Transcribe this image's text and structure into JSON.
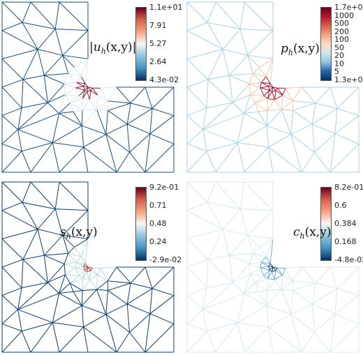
{
  "panels": [
    {
      "id": "u",
      "label": {
        "sym": "|u",
        "sub": "h",
        "args": "(x,y)",
        "close": "|"
      },
      "colorbar": {
        "colors": [
          "#67001f",
          "#d6604d",
          "#f4a582",
          "#f7f7f7",
          "#92c5de",
          "#4393c3",
          "#053061"
        ],
        "ticks": [
          "1.1e+01",
          "7.91",
          "5.27",
          "2.64",
          "4.3e-02"
        ]
      },
      "mesh_style": "uniform"
    },
    {
      "id": "p",
      "label": {
        "sym": "p",
        "sub": "h",
        "args": "(x,y)",
        "close": ""
      },
      "colorbar": {
        "colors": [
          "#67001f",
          "#b2182b",
          "#d6604d",
          "#f4a582",
          "#fddbc7",
          "#d1e5f0",
          "#92c5de",
          "#2166ac",
          "#053061"
        ],
        "ticks": [
          "1.7e+03",
          "1000",
          "500",
          "200",
          "100",
          "50",
          "20",
          "10",
          "5",
          "1.3e+00"
        ]
      },
      "mesh_style": "light"
    },
    {
      "id": "s",
      "label": {
        "sym": "s",
        "sub": "h",
        "args": "(x,y)",
        "close": ""
      },
      "colorbar": {
        "colors": [
          "#67001f",
          "#d6604d",
          "#f4a582",
          "#f7f7f7",
          "#92c5de",
          "#4393c3",
          "#053061"
        ],
        "ticks": [
          "9.2e-01",
          "0.71",
          "0.48",
          "0.24",
          "-2.9e-02"
        ]
      },
      "mesh_style": "uniform"
    },
    {
      "id": "c",
      "label": {
        "sym": "c",
        "sub": "h",
        "args": "(x,y)",
        "close": ""
      },
      "colorbar": {
        "colors": [
          "#67001f",
          "#d6604d",
          "#f4a582",
          "#f7f7f7",
          "#92c5de",
          "#4393c3",
          "#053061"
        ],
        "ticks": [
          "8.2e-01",
          "0.6",
          "0.384",
          "0.168",
          "-4.8e-02"
        ]
      },
      "mesh_style": "light"
    }
  ]
}
